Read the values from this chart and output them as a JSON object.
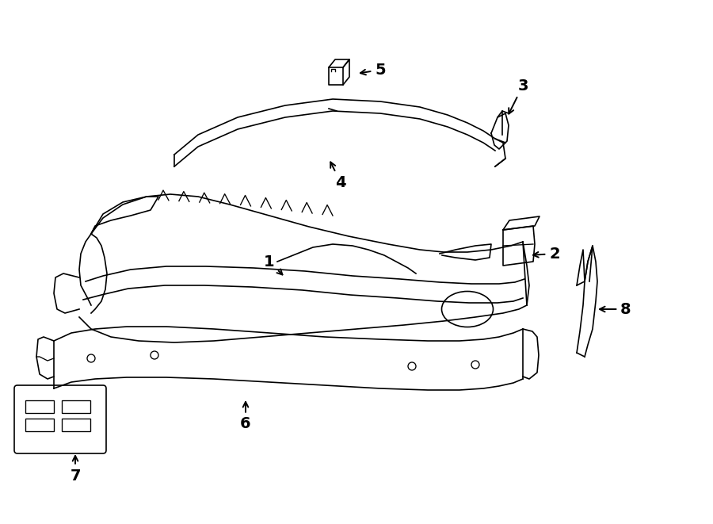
{
  "background_color": "#ffffff",
  "line_color": "#000000",
  "line_width": 1.2,
  "fig_width": 9.0,
  "fig_height": 6.61,
  "dpi": 100
}
